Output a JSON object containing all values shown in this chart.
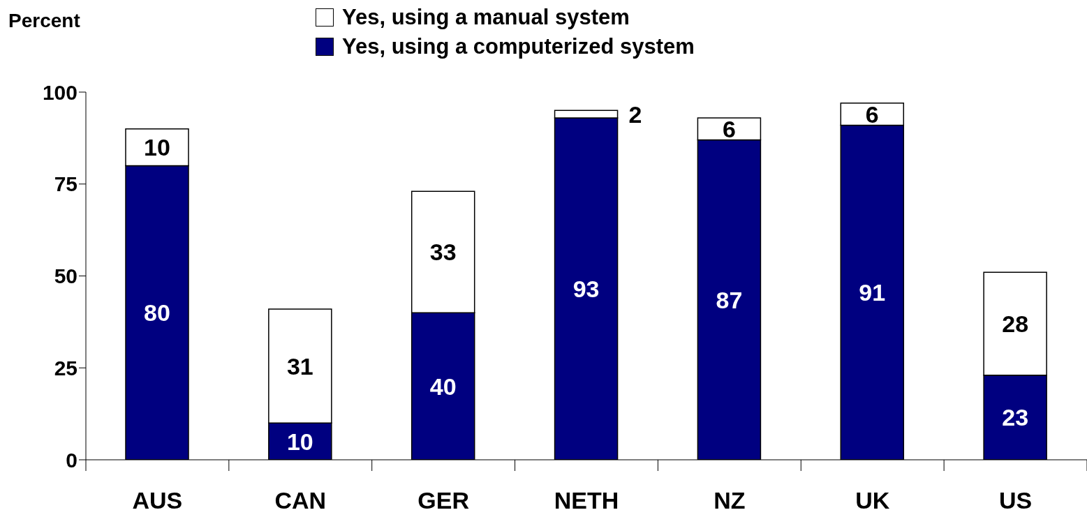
{
  "chart_data": {
    "type": "bar",
    "ylabel": "Percent",
    "categories": [
      "AUS",
      "CAN",
      "GER",
      "NETH",
      "NZ",
      "UK",
      "US"
    ],
    "stacked": true,
    "data_labels": true,
    "legend": "top",
    "ylim": [
      0,
      100
    ],
    "yticks": [
      0,
      25,
      50,
      75,
      100
    ],
    "series": [
      {
        "name": "Yes, using a computerized system",
        "color": "#000080",
        "values": [
          80,
          10,
          40,
          93,
          87,
          91,
          23
        ]
      },
      {
        "name": "Yes, using a manual system",
        "color": "#ffffff",
        "values": [
          10,
          31,
          33,
          2,
          6,
          6,
          28
        ]
      }
    ]
  }
}
